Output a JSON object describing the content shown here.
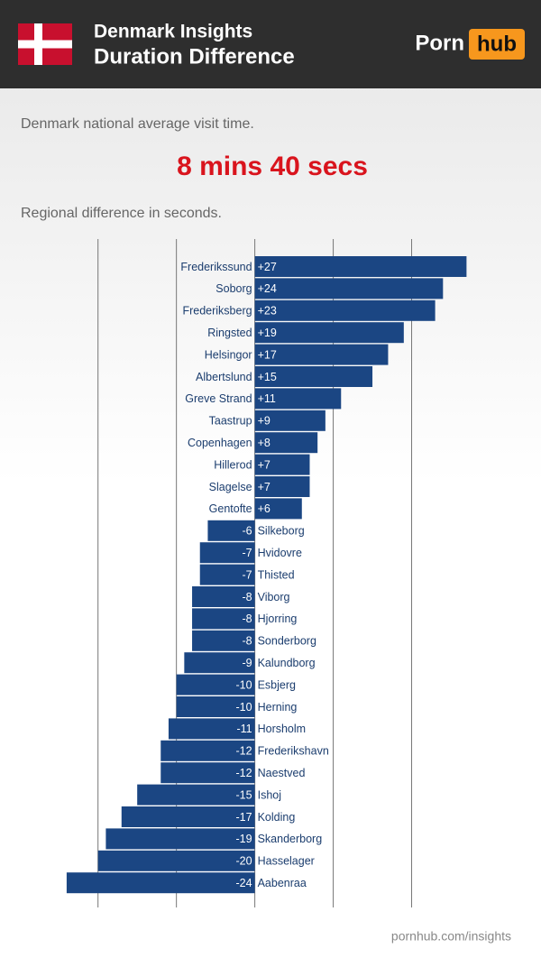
{
  "header": {
    "title": "Denmark Insights",
    "subtitle": "Duration Difference",
    "logo_left": "Porn",
    "logo_right": "hub"
  },
  "intro": {
    "label": "Denmark national average visit time.",
    "average": "8 mins 40 secs",
    "note": "Regional difference in seconds."
  },
  "footer": "pornhub.com/insights",
  "chart_data": {
    "type": "hbar",
    "color": "#1b4683",
    "grid": true,
    "categories": [
      "Frederikssund",
      "Soborg",
      "Frederiksberg",
      "Ringsted",
      "Helsingor",
      "Albertslund",
      "Greve Strand",
      "Taastrup",
      "Copenhagen",
      "Hillerod",
      "Slagelse",
      "Gentofte",
      "Silkeborg",
      "Hvidovre",
      "Thisted",
      "Viborg",
      "Hjorring",
      "Sonderborg",
      "Kalundborg",
      "Esbjerg",
      "Herning",
      "Horsholm",
      "Frederikshavn",
      "Naestved",
      "Ishoj",
      "Kolding",
      "Skanderborg",
      "Hasselager",
      "Aabenraa"
    ],
    "values": [
      27,
      24,
      23,
      19,
      17,
      15,
      11,
      9,
      8,
      7,
      7,
      6,
      -6,
      -7,
      -7,
      -8,
      -8,
      -8,
      -9,
      -10,
      -10,
      -11,
      -12,
      -12,
      -15,
      -17,
      -19,
      -20,
      -24
    ],
    "value_labels": [
      "+27",
      "+24",
      "+23",
      "+19",
      "+17",
      "+15",
      "+11",
      "+9",
      "+8",
      "+7",
      "+7",
      "+6",
      "-6",
      "-7",
      "-7",
      "-8",
      "-8",
      "-8",
      "-9",
      "-10",
      "-10",
      "-11",
      "-12",
      "-12",
      "-15",
      "-17",
      "-19",
      "-20",
      "-24"
    ],
    "xlim": [
      -32.5,
      36.5
    ],
    "xticks": [
      -20,
      -10,
      0,
      10,
      20
    ]
  }
}
